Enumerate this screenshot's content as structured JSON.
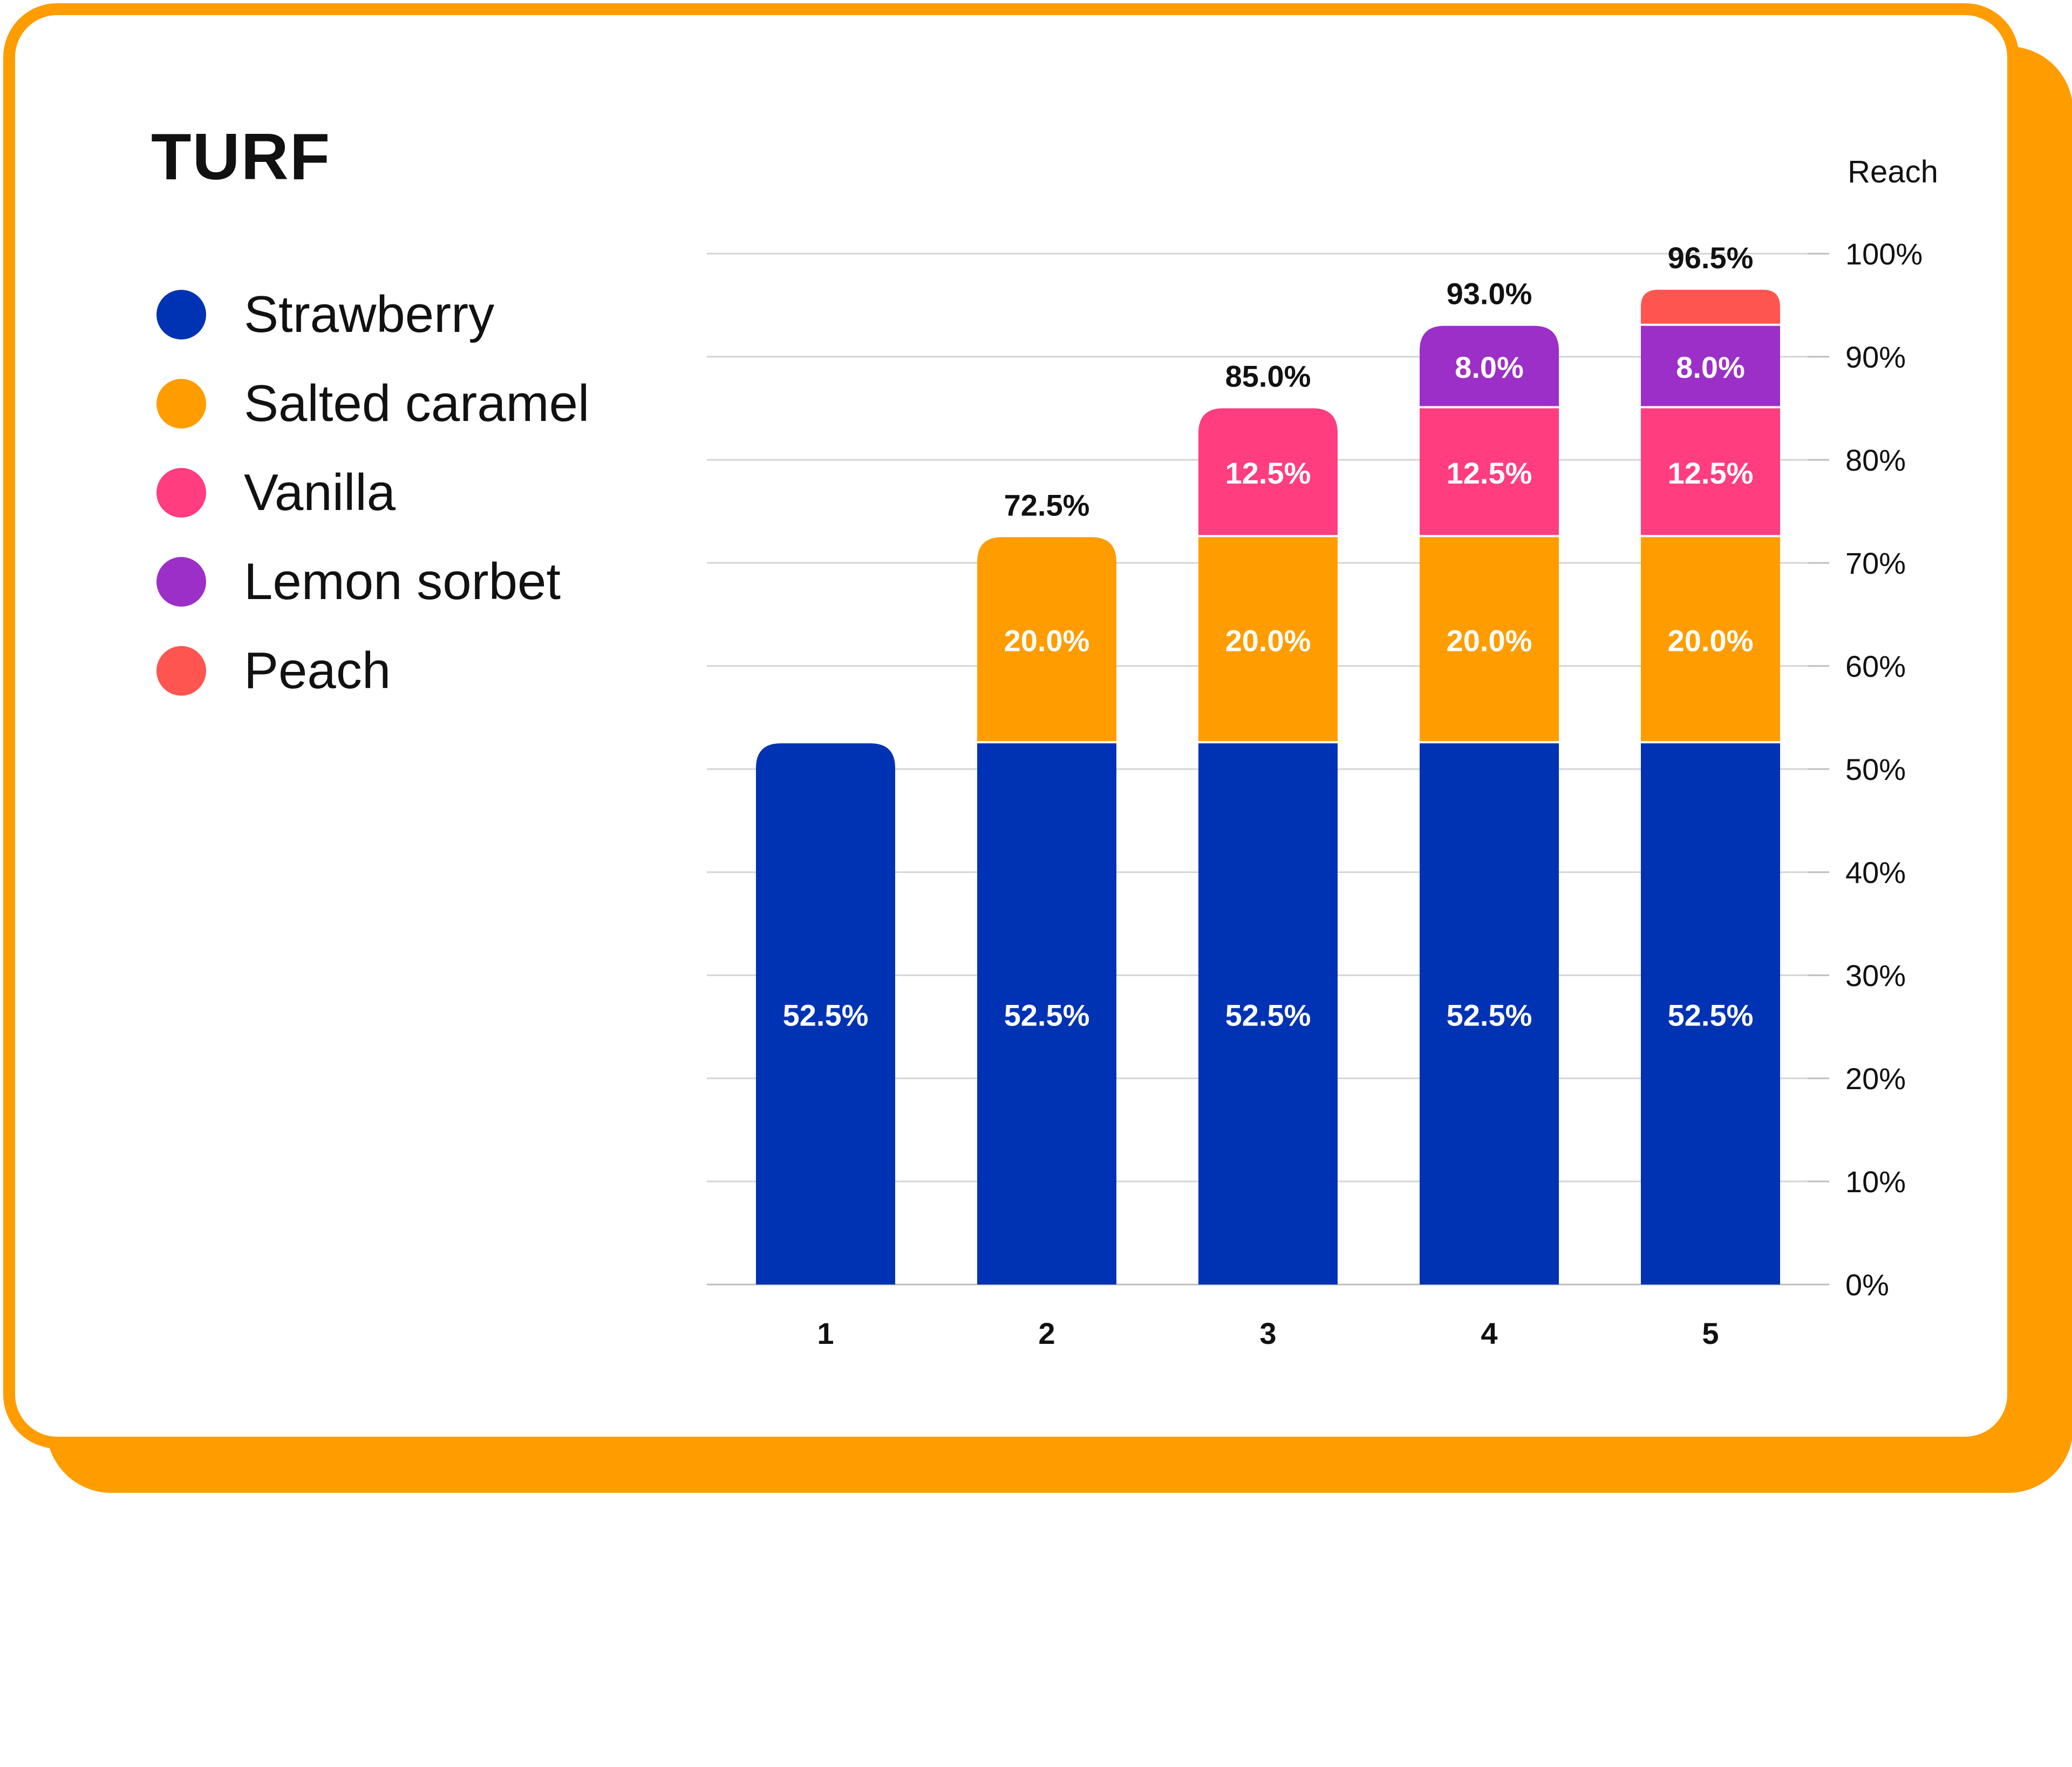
{
  "chart_data": {
    "type": "bar",
    "stacked": true,
    "title": "TURF",
    "ylabel": "Reach",
    "xlabel": "",
    "ylim": [
      0,
      100
    ],
    "yticks": [
      "0%",
      "10%",
      "20%",
      "30%",
      "40%",
      "50%",
      "60%",
      "70%",
      "80%",
      "90%",
      "100%"
    ],
    "categories": [
      "1",
      "2",
      "3",
      "4",
      "5"
    ],
    "series": [
      {
        "name": "Strawberry",
        "color": "#0033b4",
        "values": [
          52.5,
          52.5,
          52.5,
          52.5,
          52.5
        ]
      },
      {
        "name": "Salted caramel",
        "color": "#ff9d00",
        "values": [
          0,
          20.0,
          20.0,
          20.0,
          20.0
        ]
      },
      {
        "name": "Vanilla",
        "color": "#ff3d7f",
        "values": [
          0,
          0,
          12.5,
          12.5,
          12.5
        ]
      },
      {
        "name": "Lemon sorbet",
        "color": "#9c2fc8",
        "values": [
          0,
          0,
          0,
          8.0,
          8.0
        ]
      },
      {
        "name": "Peach",
        "color": "#ff5550",
        "values": [
          0,
          0,
          0,
          0,
          3.5
        ]
      }
    ],
    "segment_labels": [
      [
        "52.5%",
        "",
        "",
        "",
        ""
      ],
      [
        "52.5%",
        "20.0%",
        "",
        "",
        ""
      ],
      [
        "52.5%",
        "20.0%",
        "12.5%",
        "",
        ""
      ],
      [
        "52.5%",
        "20.0%",
        "12.5%",
        "8.0%",
        ""
      ],
      [
        "52.5%",
        "20.0%",
        "12.5%",
        "8.0%",
        ""
      ]
    ],
    "totals": [
      52.5,
      72.5,
      85.0,
      93.0,
      96.5
    ],
    "total_labels": [
      "",
      "72.5%",
      "85.0%",
      "93.0%",
      "96.5%"
    ],
    "legend_position": "left",
    "grid": true
  }
}
